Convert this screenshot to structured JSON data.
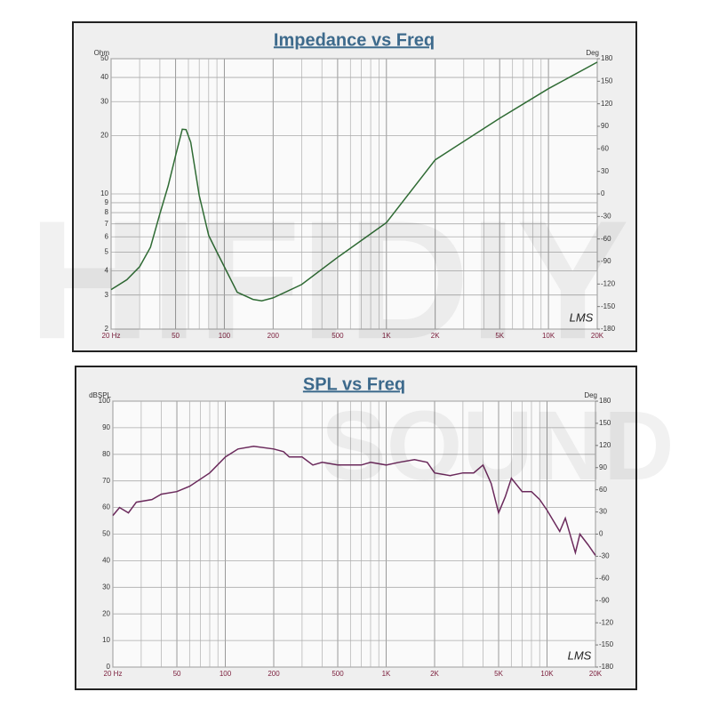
{
  "chart_data": [
    {
      "type": "line",
      "title": "Impedance vs Freq",
      "ylabel": "Ohm",
      "y2label": "Deg",
      "logo": "LMS",
      "xlog": true,
      "ylog": true,
      "color": "#2f6b34",
      "x": [
        20,
        25,
        30,
        35,
        40,
        45,
        50,
        55,
        58,
        62,
        70,
        80,
        90,
        100,
        120,
        150,
        170,
        200,
        300,
        500,
        1000,
        2000,
        5000,
        10000,
        20000
      ],
      "values": [
        3.2,
        3.6,
        4.2,
        5.3,
        7.9,
        11,
        15.8,
        21.6,
        21.5,
        18.5,
        9.8,
        6.1,
        5,
        4.2,
        3.1,
        2.85,
        2.8,
        2.9,
        3.4,
        4.7,
        7.1,
        15,
        24.6,
        35,
        48
      ],
      "xlim": [
        20,
        20000
      ],
      "xticks": [
        {
          "value": 20,
          "label": "20 Hz"
        },
        50,
        100,
        200,
        500,
        {
          "value": 1000,
          "label": "1K"
        },
        {
          "value": 2000,
          "label": "2K"
        },
        {
          "value": 5000,
          "label": "5K"
        },
        {
          "value": 10000,
          "label": "10K"
        },
        {
          "value": 20000,
          "label": "20K"
        }
      ],
      "xgrid": [
        30,
        40,
        60,
        70,
        80,
        90,
        300,
        400,
        600,
        700,
        800,
        900,
        3000,
        4000,
        6000,
        7000,
        8000,
        9000
      ],
      "ylim": [
        2,
        50
      ],
      "yticks": [
        2,
        3,
        4,
        5,
        6,
        7,
        8,
        9,
        10,
        20,
        30,
        40,
        50
      ],
      "y2lim": [
        -180,
        180
      ],
      "y2ticks": [
        -180,
        -150,
        -120,
        -90,
        -60,
        -30,
        0,
        30,
        60,
        90,
        120,
        150,
        180
      ],
      "grid": true
    },
    {
      "type": "line",
      "title": "SPL vs Freq",
      "ylabel": "dBSPL",
      "y2label": "Deg",
      "logo": "LMS",
      "xlog": true,
      "ylog": false,
      "color": "#6b2a5c",
      "x": [
        20,
        22,
        25,
        28,
        35,
        40,
        50,
        60,
        80,
        100,
        120,
        150,
        200,
        230,
        250,
        300,
        350,
        400,
        500,
        700,
        800,
        1000,
        1200,
        1500,
        1800,
        2000,
        2500,
        3000,
        3500,
        4000,
        4500,
        5000,
        5500,
        6000,
        7000,
        8000,
        9000,
        10000,
        12000,
        13000,
        15000,
        16000,
        18000,
        20000
      ],
      "values": [
        57,
        60,
        58,
        62,
        63,
        65,
        66,
        68,
        73,
        79,
        82,
        83,
        82,
        81,
        79,
        79,
        76,
        77,
        76,
        76,
        77,
        76,
        77,
        78,
        77,
        73,
        72,
        73,
        73,
        76,
        69,
        58,
        64,
        71,
        66,
        66,
        63,
        59,
        51,
        56,
        43,
        50,
        46,
        42
      ],
      "xlim": [
        20,
        20000
      ],
      "xticks": [
        {
          "value": 20,
          "label": "20 Hz"
        },
        50,
        100,
        200,
        500,
        {
          "value": 1000,
          "label": "1K"
        },
        {
          "value": 2000,
          "label": "2K"
        },
        {
          "value": 5000,
          "label": "5K"
        },
        {
          "value": 10000,
          "label": "10K"
        },
        {
          "value": 20000,
          "label": "20K"
        }
      ],
      "xgrid": [
        30,
        40,
        60,
        70,
        80,
        90,
        300,
        400,
        600,
        700,
        800,
        900,
        3000,
        4000,
        6000,
        7000,
        8000,
        9000
      ],
      "ylim": [
        0,
        100
      ],
      "yticks": [
        0,
        10,
        20,
        30,
        40,
        50,
        60,
        70,
        80,
        90,
        100
      ],
      "y2lim": [
        -180,
        180
      ],
      "y2ticks": [
        -180,
        -150,
        -120,
        -90,
        -60,
        -30,
        0,
        30,
        60,
        90,
        120,
        150,
        180
      ],
      "grid": true
    }
  ],
  "watermark": [
    "HIFIDIY",
    "SOUND"
  ]
}
